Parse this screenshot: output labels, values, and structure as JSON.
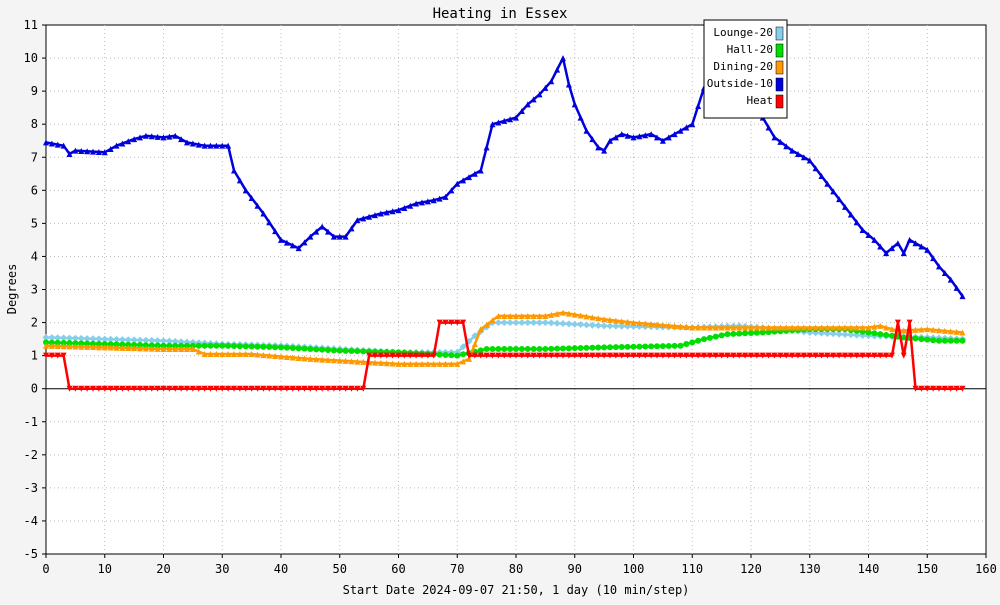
{
  "chart_data": {
    "type": "line",
    "title": "Heating in Essex",
    "xlabel": "Start Date 2024-09-07 21:50, 1 day (10 min/step)",
    "ylabel": "Degrees",
    "xlim": [
      0,
      160
    ],
    "ylim": [
      -5,
      11
    ],
    "x_ticks": [
      0,
      10,
      20,
      30,
      40,
      50,
      60,
      70,
      80,
      90,
      100,
      110,
      120,
      130,
      140,
      150,
      160
    ],
    "y_ticks": [
      -5,
      -4,
      -3,
      -2,
      -1,
      0,
      1,
      2,
      3,
      4,
      5,
      6,
      7,
      8,
      9,
      10,
      11
    ],
    "grid": true,
    "legend_position": "top-right",
    "series": [
      {
        "name": "Lounge-20",
        "color": "#87ceeb",
        "marker": "diamond",
        "points": [
          [
            0,
            1.55
          ],
          [
            10,
            1.5
          ],
          [
            20,
            1.45
          ],
          [
            30,
            1.35
          ],
          [
            40,
            1.3
          ],
          [
            50,
            1.2
          ],
          [
            60,
            1.1
          ],
          [
            70,
            1.1
          ],
          [
            73,
            1.6
          ],
          [
            76,
            2.0
          ],
          [
            85,
            2.0
          ],
          [
            95,
            1.9
          ],
          [
            110,
            1.85
          ],
          [
            118,
            1.9
          ],
          [
            125,
            1.8
          ],
          [
            130,
            1.7
          ],
          [
            140,
            1.6
          ],
          [
            150,
            1.55
          ],
          [
            156,
            1.5
          ]
        ]
      },
      {
        "name": "Hall-20",
        "color": "#00dd00",
        "marker": "circle",
        "points": [
          [
            0,
            1.4
          ],
          [
            10,
            1.35
          ],
          [
            20,
            1.3
          ],
          [
            30,
            1.3
          ],
          [
            40,
            1.25
          ],
          [
            50,
            1.15
          ],
          [
            60,
            1.1
          ],
          [
            70,
            1.0
          ],
          [
            75,
            1.2
          ],
          [
            85,
            1.2
          ],
          [
            95,
            1.25
          ],
          [
            108,
            1.3
          ],
          [
            112,
            1.5
          ],
          [
            116,
            1.65
          ],
          [
            122,
            1.7
          ],
          [
            130,
            1.8
          ],
          [
            136,
            1.8
          ],
          [
            140,
            1.7
          ],
          [
            146,
            1.55
          ],
          [
            152,
            1.45
          ],
          [
            156,
            1.45
          ]
        ]
      },
      {
        "name": "Dining-20",
        "color": "#ff9900",
        "marker": "triangle-up",
        "points": [
          [
            0,
            1.3
          ],
          [
            10,
            1.25
          ],
          [
            20,
            1.2
          ],
          [
            25,
            1.2
          ],
          [
            27,
            1.05
          ],
          [
            35,
            1.05
          ],
          [
            45,
            0.9
          ],
          [
            55,
            0.8
          ],
          [
            60,
            0.75
          ],
          [
            70,
            0.75
          ],
          [
            72,
            0.9
          ],
          [
            74,
            1.8
          ],
          [
            77,
            2.2
          ],
          [
            85,
            2.2
          ],
          [
            88,
            2.3
          ],
          [
            95,
            2.1
          ],
          [
            100,
            2.0
          ],
          [
            110,
            1.85
          ],
          [
            120,
            1.85
          ],
          [
            130,
            1.85
          ],
          [
            140,
            1.85
          ],
          [
            142,
            1.9
          ],
          [
            145,
            1.75
          ],
          [
            150,
            1.8
          ],
          [
            156,
            1.7
          ]
        ]
      },
      {
        "name": "Outside-10",
        "color": "#0000dd",
        "marker": "triangle-up",
        "points": [
          [
            0,
            7.45
          ],
          [
            3,
            7.35
          ],
          [
            4,
            7.1
          ],
          [
            5,
            7.2
          ],
          [
            10,
            7.15
          ],
          [
            12,
            7.35
          ],
          [
            15,
            7.55
          ],
          [
            17,
            7.65
          ],
          [
            20,
            7.6
          ],
          [
            22,
            7.65
          ],
          [
            24,
            7.45
          ],
          [
            27,
            7.35
          ],
          [
            31,
            7.35
          ],
          [
            32,
            6.6
          ],
          [
            34,
            6.0
          ],
          [
            37,
            5.3
          ],
          [
            40,
            4.5
          ],
          [
            43,
            4.25
          ],
          [
            45,
            4.6
          ],
          [
            47,
            4.9
          ],
          [
            49,
            4.6
          ],
          [
            51,
            4.6
          ],
          [
            53,
            5.1
          ],
          [
            57,
            5.3
          ],
          [
            60,
            5.4
          ],
          [
            63,
            5.6
          ],
          [
            66,
            5.7
          ],
          [
            68,
            5.8
          ],
          [
            70,
            6.2
          ],
          [
            72,
            6.4
          ],
          [
            74,
            6.6
          ],
          [
            76,
            8.0
          ],
          [
            78,
            8.1
          ],
          [
            80,
            8.2
          ],
          [
            82,
            8.6
          ],
          [
            84,
            8.9
          ],
          [
            86,
            9.3
          ],
          [
            88,
            10.0
          ],
          [
            89,
            9.2
          ],
          [
            90,
            8.6
          ],
          [
            92,
            7.8
          ],
          [
            94,
            7.3
          ],
          [
            95,
            7.2
          ],
          [
            96,
            7.5
          ],
          [
            98,
            7.7
          ],
          [
            100,
            7.6
          ],
          [
            103,
            7.7
          ],
          [
            105,
            7.5
          ],
          [
            108,
            7.8
          ],
          [
            110,
            8.0
          ],
          [
            112,
            9.1
          ],
          [
            122,
            8.2
          ],
          [
            124,
            7.6
          ],
          [
            127,
            7.2
          ],
          [
            130,
            6.9
          ],
          [
            133,
            6.2
          ],
          [
            136,
            5.5
          ],
          [
            139,
            4.8
          ],
          [
            141,
            4.5
          ],
          [
            143,
            4.1
          ],
          [
            145,
            4.4
          ],
          [
            146,
            4.1
          ],
          [
            147,
            4.5
          ],
          [
            150,
            4.2
          ],
          [
            152,
            3.7
          ],
          [
            154,
            3.3
          ],
          [
            156,
            2.8
          ]
        ]
      },
      {
        "name": "Heat",
        "color": "#ff0000",
        "marker": "triangle-down",
        "points": [
          [
            0,
            1.0
          ],
          [
            3,
            1.0
          ],
          [
            4,
            0.0
          ],
          [
            54,
            0.0
          ],
          [
            55,
            1.0
          ],
          [
            66,
            1.0
          ],
          [
            67,
            2.0
          ],
          [
            71,
            2.0
          ],
          [
            72,
            1.0
          ],
          [
            144,
            1.0
          ],
          [
            145,
            2.0
          ],
          [
            146,
            1.0
          ],
          [
            147,
            2.0
          ],
          [
            148,
            0.0
          ],
          [
            156,
            0.0
          ]
        ]
      }
    ]
  }
}
